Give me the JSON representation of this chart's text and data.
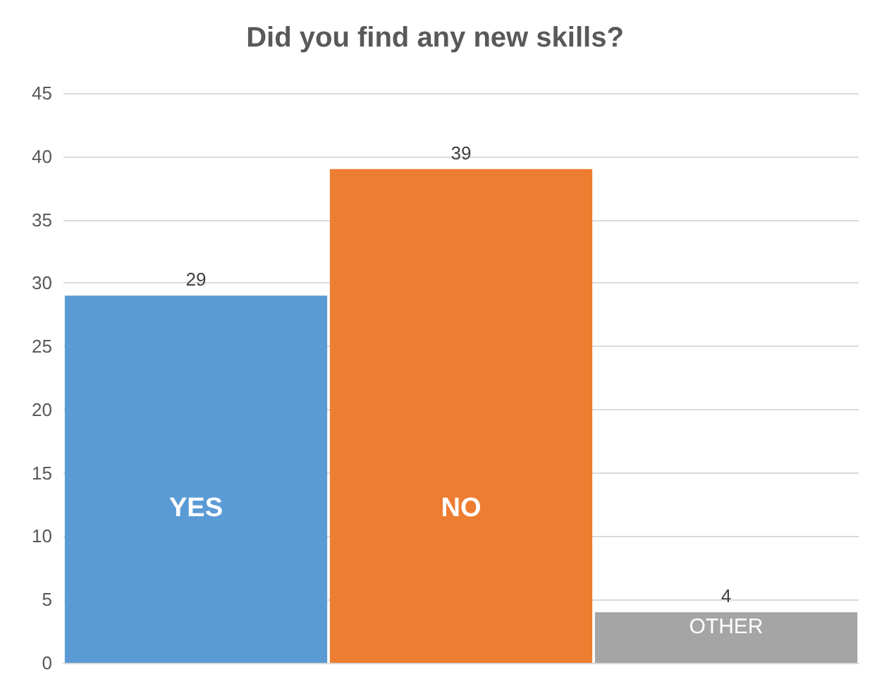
{
  "chart_data": {
    "type": "bar",
    "title": "Did you find any new skills?",
    "categories": [
      "YES",
      "NO",
      "OTHER"
    ],
    "values": [
      29,
      39,
      4
    ],
    "colors": [
      "#5b9bd5",
      "#ed7d31",
      "#a5a5a5"
    ],
    "ylim": [
      0,
      45
    ],
    "yticks": [
      0,
      5,
      10,
      15,
      20,
      25,
      30,
      35,
      40,
      45
    ],
    "grid": "y",
    "data_labels": true
  }
}
